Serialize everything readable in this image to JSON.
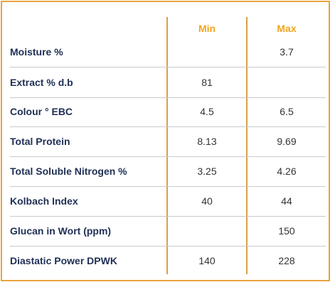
{
  "table": {
    "headers": {
      "min": "Min",
      "max": "Max"
    },
    "rows": [
      {
        "label": "Moisture %",
        "min": "",
        "max": "3.7"
      },
      {
        "label": "Extract % d.b",
        "min": "81",
        "max": ""
      },
      {
        "label": "Colour ° EBC",
        "min": "4.5",
        "max": "6.5"
      },
      {
        "label": "Total Protein",
        "min": "8.13",
        "max": "9.69"
      },
      {
        "label": "Total Soluble Nitrogen %",
        "min": "3.25",
        "max": "4.26"
      },
      {
        "label": "Kolbach Index",
        "min": "40",
        "max": "44"
      },
      {
        "label": "Glucan in Wort (ppm)",
        "min": "",
        "max": "150"
      },
      {
        "label": "Diastatic Power DPWK",
        "min": "140",
        "max": "228"
      }
    ]
  },
  "colors": {
    "border": "#e8a33c",
    "header_text": "#f2a51c",
    "label_text": "#1f2f55",
    "divider": "#c9c9c9"
  }
}
